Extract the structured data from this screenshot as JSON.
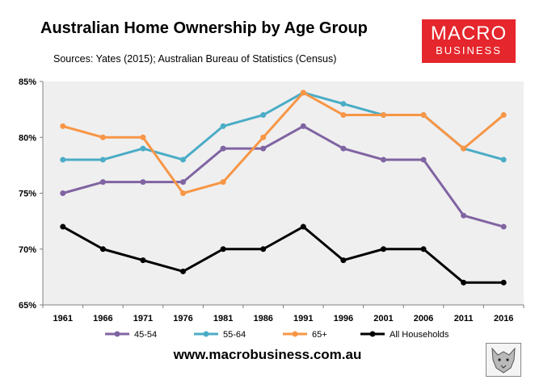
{
  "header": {
    "title": "Australian Home Ownership by Age Group",
    "subtitle": "Sources: Yates (2015); Australian Bureau of Statistics (Census)"
  },
  "logo": {
    "line1": "MACRO",
    "line2": "BUSINESS",
    "color": "#e5262c"
  },
  "footer": {
    "url": "www.macrobusiness.com.au"
  },
  "chart_data": {
    "type": "line",
    "title": "Australian Home Ownership by Age Group",
    "xlabel": "",
    "ylabel": "",
    "categories": [
      "1961",
      "1966",
      "1971",
      "1976",
      "1981",
      "1986",
      "1991",
      "1996",
      "2001",
      "2006",
      "2011",
      "2016"
    ],
    "ylim": [
      65,
      85
    ],
    "yticks": [
      65,
      70,
      75,
      80,
      85
    ],
    "ytick_labels": [
      "65%",
      "70%",
      "75%",
      "80%",
      "85%"
    ],
    "grid": false,
    "legend": "bottom",
    "series": [
      {
        "name": "45-54",
        "color": "#8064a2",
        "values": [
          75,
          76,
          76,
          76,
          79,
          79,
          81,
          79,
          78,
          78,
          73,
          72
        ]
      },
      {
        "name": "55-64",
        "color": "#4bacc6",
        "values": [
          78,
          78,
          79,
          78,
          81,
          82,
          84,
          83,
          82,
          82,
          79,
          78
        ]
      },
      {
        "name": "65+",
        "color": "#f79646",
        "values": [
          81,
          80,
          80,
          75,
          76,
          80,
          84,
          82,
          82,
          82,
          79,
          82
        ]
      },
      {
        "name": "All Households",
        "color": "#000000",
        "values": [
          72,
          70,
          69,
          68,
          70,
          70,
          72,
          69,
          70,
          70,
          67,
          67
        ]
      }
    ]
  }
}
